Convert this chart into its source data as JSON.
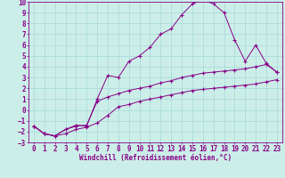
{
  "xlabel": "Windchill (Refroidissement éolien,°C)",
  "bg_color": "#cceee8",
  "grid_color": "#aadddd",
  "line_color": "#880088",
  "xlim": [
    -0.5,
    23.5
  ],
  "ylim": [
    -3,
    10
  ],
  "xticks": [
    0,
    1,
    2,
    3,
    4,
    5,
    6,
    7,
    8,
    9,
    10,
    11,
    12,
    13,
    14,
    15,
    16,
    17,
    18,
    19,
    20,
    21,
    22,
    23
  ],
  "yticks": [
    -3,
    -2,
    -1,
    0,
    1,
    2,
    3,
    4,
    5,
    6,
    7,
    8,
    9,
    10
  ],
  "line1_x": [
    0,
    1,
    2,
    3,
    4,
    5,
    6,
    7,
    8,
    9,
    10,
    11,
    12,
    13,
    14,
    15,
    16,
    17,
    18,
    19,
    20,
    21,
    22,
    23
  ],
  "line1_y": [
    -1.5,
    -2.2,
    -2.4,
    -2.2,
    -1.8,
    -1.6,
    -1.2,
    -0.5,
    0.3,
    0.5,
    0.8,
    1.0,
    1.2,
    1.4,
    1.6,
    1.8,
    1.9,
    2.0,
    2.1,
    2.2,
    2.3,
    2.4,
    2.6,
    2.8
  ],
  "line2_x": [
    0,
    1,
    2,
    3,
    4,
    5,
    6,
    7,
    8,
    9,
    10,
    11,
    12,
    13,
    14,
    15,
    16,
    17,
    18,
    19,
    20,
    21,
    22,
    23
  ],
  "line2_y": [
    -1.5,
    -2.2,
    -2.4,
    -1.8,
    -1.5,
    -1.4,
    0.8,
    1.2,
    1.5,
    1.8,
    2.0,
    2.2,
    2.5,
    2.7,
    3.0,
    3.2,
    3.4,
    3.5,
    3.6,
    3.7,
    3.8,
    4.0,
    4.2,
    3.5
  ],
  "line3_x": [
    0,
    1,
    2,
    3,
    4,
    5,
    6,
    7,
    8,
    9,
    10,
    11,
    12,
    13,
    14,
    15,
    16,
    17,
    18,
    19,
    20,
    21,
    22,
    23
  ],
  "line3_y": [
    -1.5,
    -2.2,
    -2.4,
    -1.8,
    -1.4,
    -1.5,
    1.0,
    3.2,
    3.0,
    4.5,
    5.0,
    5.8,
    7.0,
    7.5,
    8.8,
    9.8,
    10.2,
    9.8,
    9.0,
    6.5,
    4.5,
    6.0,
    4.3,
    3.5
  ],
  "xlabel_fontsize": 5.5,
  "tick_fontsize": 5.5
}
